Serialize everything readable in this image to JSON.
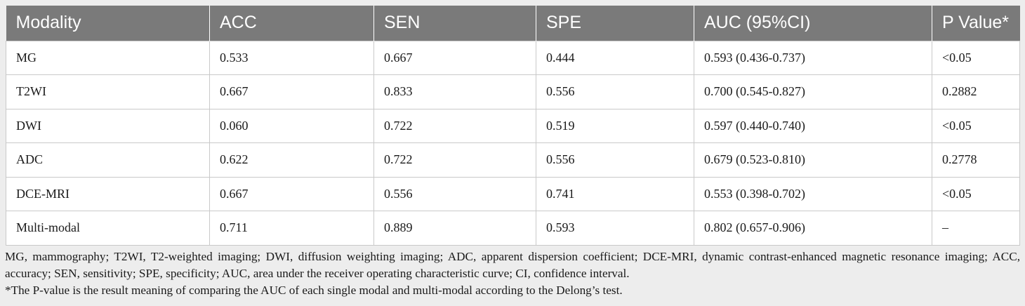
{
  "table": {
    "headers": [
      "Modality",
      "ACC",
      "SEN",
      "SPE",
      "AUC (95%CI)",
      "P Value*"
    ],
    "rows": [
      [
        "MG",
        "0.533",
        "0.667",
        "0.444",
        "0.593 (0.436-0.737)",
        "<0.05"
      ],
      [
        "T2WI",
        "0.667",
        "0.833",
        "0.556",
        "0.700 (0.545-0.827)",
        "0.2882"
      ],
      [
        "DWI",
        "0.060",
        "0.722",
        "0.519",
        "0.597 (0.440-0.740)",
        "<0.05"
      ],
      [
        "ADC",
        "0.622",
        "0.722",
        "0.556",
        "0.679 (0.523-0.810)",
        "0.2778"
      ],
      [
        "DCE-MRI",
        "0.667",
        "0.556",
        "0.741",
        "0.553 (0.398-0.702)",
        "<0.05"
      ],
      [
        "Multi-modal",
        "0.711",
        "0.889",
        "0.593",
        "0.802 (0.657-0.906)",
        "–"
      ]
    ]
  },
  "footnotes": {
    "abbreviations": "MG, mammography; T2WI, T2-weighted imaging; DWI, diffusion weighting imaging; ADC, apparent dispersion coefficient; DCE-MRI, dynamic contrast-enhanced magnetic resonance imaging; ACC, accuracy; SEN, sensitivity; SPE, specificity; AUC, area under the receiver operating characteristic curve; CI, confidence interval.",
    "p_value_note": "*The P-value is the result meaning of comparing the AUC of each single modal and multi-modal according to the Delong’s test."
  },
  "colors": {
    "header_bg": "#7a7a7a",
    "header_text": "#ffffff",
    "page_bg": "#ededed",
    "cell_border": "#c9c9c9"
  }
}
